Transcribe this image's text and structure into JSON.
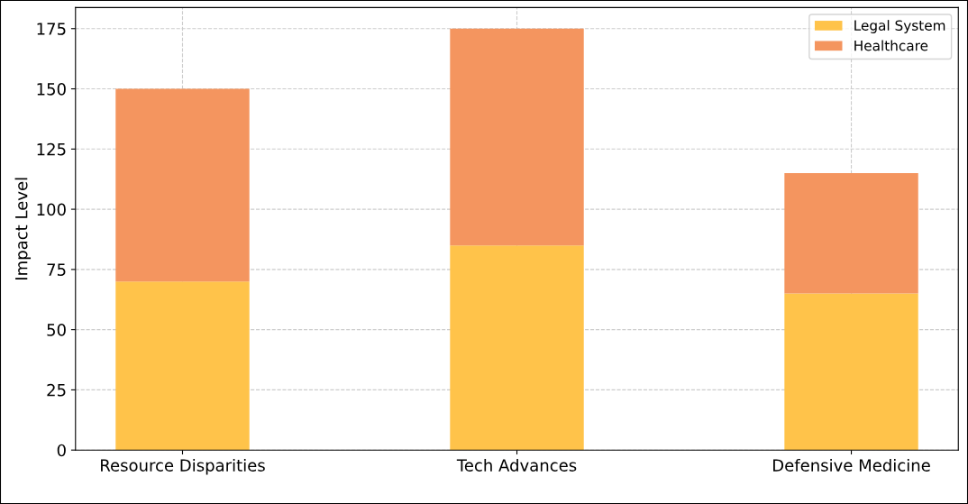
{
  "chart_data": {
    "type": "bar",
    "stacked": true,
    "ylabel": "Impact Level",
    "categories": [
      "Resource Disparities",
      "Tech Advances",
      "Defensive Medicine"
    ],
    "series": [
      {
        "name": "Legal System",
        "color": "#ffc34a",
        "values": [
          70,
          85,
          65
        ]
      },
      {
        "name": "Healthcare",
        "color": "#f4955f",
        "values": [
          80,
          90,
          50
        ]
      }
    ],
    "ylim": [
      0,
      183.75
    ],
    "yticks": [
      0,
      25,
      50,
      75,
      100,
      125,
      150,
      175
    ],
    "grid": true,
    "legend": "top right"
  }
}
